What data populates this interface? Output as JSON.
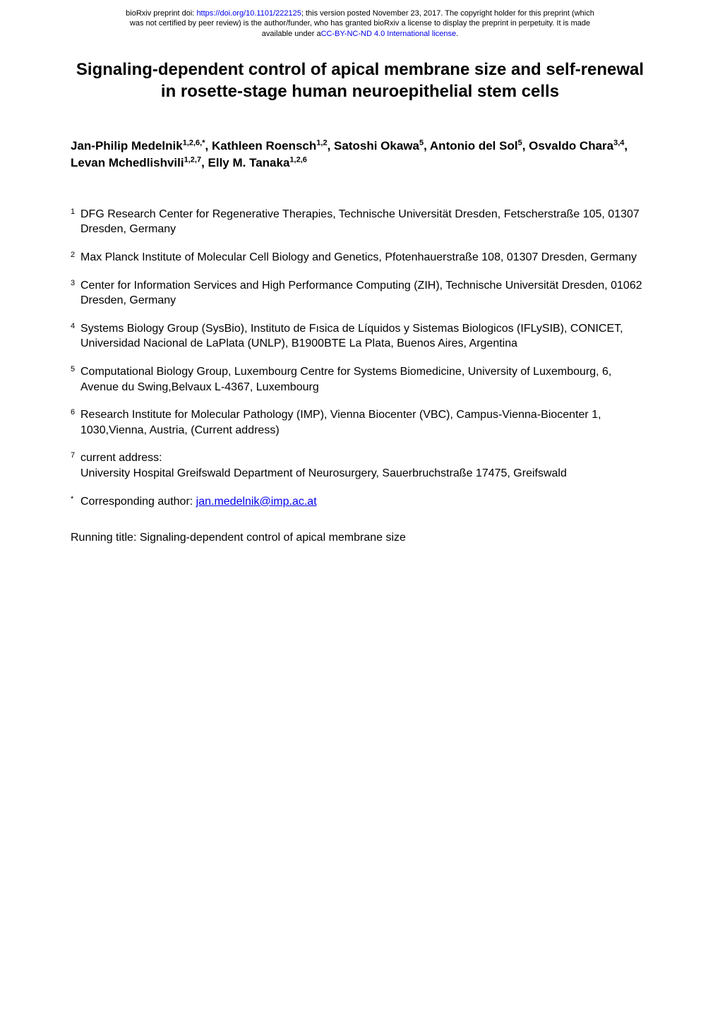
{
  "preprint_banner": {
    "line1_prefix": "bioRxiv preprint doi: ",
    "doi_link": "https://doi.org/10.1101/222125",
    "line1_suffix": "; this version posted November 23, 2017. The copyright holder for this preprint (which",
    "line2": "was not certified by peer review) is the author/funder, who has granted bioRxiv a license to display the preprint in perpetuity. It is made",
    "line3_prefix": "available under a",
    "license_link": "CC-BY-NC-ND 4.0 International license",
    "line3_suffix": "."
  },
  "title": "Signaling-dependent control of apical membrane size and self-renewal in rosette-stage human neuroepithelial stem cells",
  "authors_html": "Jan-Philip Medelnik<sup>1,2,6,*</sup>, Kathleen Roensch<sup>1,2</sup>, Satoshi Okawa<sup>5</sup>, Antonio del Sol<sup>5</sup>, Osvaldo Chara<sup>3,4</sup>, Levan Mchedlishvili<sup>1,2,7</sup>, Elly M. Tanaka<sup>1,2,6</sup>",
  "affiliations": [
    {
      "num": "1",
      "text": "DFG Research Center for Regenerative Therapies, Technische Universität Dresden, Fetscherstraße 105, 01307 Dresden, Germany"
    },
    {
      "num": "2",
      "text": "Max Planck Institute of Molecular Cell Biology and Genetics, Pfotenhauerstraße 108, 01307 Dresden, Germany"
    },
    {
      "num": "3",
      "text": "Center for Information Services and High Performance Computing (ZIH), Technische Universität Dresden, 01062 Dresden, Germany"
    },
    {
      "num": "4",
      "text": "Systems Biology Group (SysBio), Instituto de Fısica de Líquidos y Sistemas Biologicos (IFLySIB), CONICET, Universidad Nacional de LaPlata (UNLP), B1900BTE La Plata, Buenos Aires, Argentina"
    },
    {
      "num": "5",
      "text": "Computational Biology Group, Luxembourg Centre for Systems Biomedicine, University of Luxembourg, 6, Avenue du Swing,Belvaux L-4367, Luxembourg"
    },
    {
      "num": "6",
      "text": "Research Institute for Molecular Pathology (IMP), Vienna Biocenter (VBC), Campus-Vienna-Biocenter 1, 1030,Vienna, Austria, (Current address)"
    },
    {
      "num": "7",
      "text": "current address:\nUniversity Hospital Greifswald Department of Neurosurgery, Sauerbruchstraße 17475, Greifswald"
    }
  ],
  "corresponding": {
    "num": "*",
    "label": "Corresponding author: ",
    "email": "jan.medelnik@imp.ac.at"
  },
  "running_title": "Running title: Signaling-dependent control of apical membrane size",
  "colors": {
    "text": "#000000",
    "link": "#0000ee",
    "background": "#ffffff"
  },
  "typography": {
    "banner_fontsize": 11,
    "title_fontsize": 24,
    "authors_fontsize": 17,
    "body_fontsize": 16,
    "sup_fontsize": 11,
    "font_family": "Arial"
  }
}
